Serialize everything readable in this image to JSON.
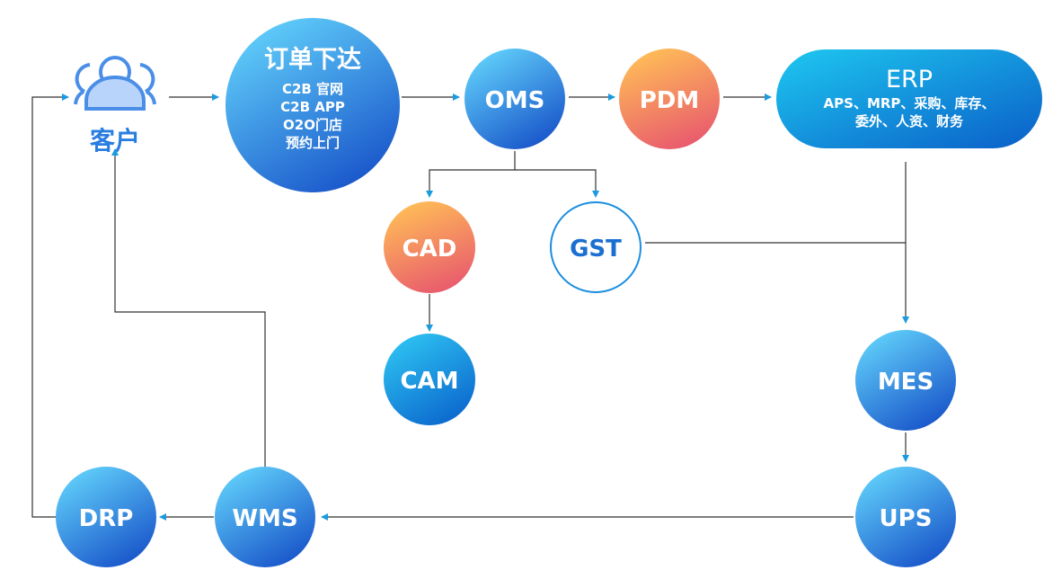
{
  "customer": {
    "label": "客户",
    "icon": "users-icon"
  },
  "order": {
    "title": "订单下达",
    "lines": [
      "C2B 官网",
      "C2B APP",
      "O2O门店",
      "预约上门"
    ]
  },
  "nodes": {
    "oms": "OMS",
    "pdm": "PDM",
    "cad": "CAD",
    "cam": "CAM",
    "gst": "GST",
    "mes": "MES",
    "ups": "UPS",
    "wms": "WMS",
    "drp": "DRP"
  },
  "erp": {
    "title": "ERP",
    "lines": [
      "APS、MRP、采购、库存、",
      "委外、人资、财务"
    ]
  },
  "colors": {
    "blue_light": "#5fd0fa",
    "blue_dark": "#1650c8",
    "orange_light": "#ffb957",
    "orange_dark": "#e85a6e",
    "arrow": "#1a9be0",
    "gst_text": "#1a6fd0",
    "customer": "#2a7de0"
  }
}
